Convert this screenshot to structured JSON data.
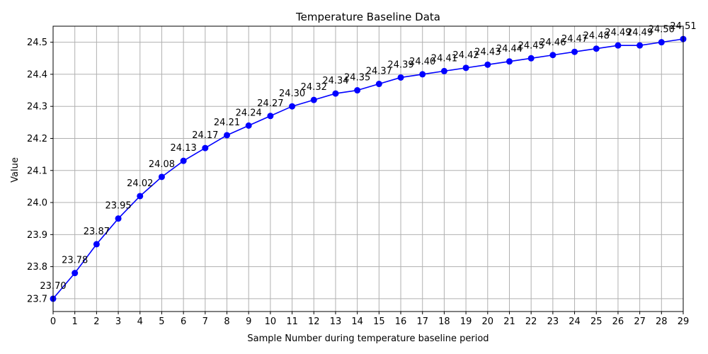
{
  "chart_data": {
    "type": "line",
    "title": "Temperature Baseline Data",
    "xlabel": "Sample Number during temperature baseline period",
    "ylabel": "Value",
    "x": [
      0,
      1,
      2,
      3,
      4,
      5,
      6,
      7,
      8,
      9,
      10,
      11,
      12,
      13,
      14,
      15,
      16,
      17,
      18,
      19,
      20,
      21,
      22,
      23,
      24,
      25,
      26,
      27,
      28,
      29
    ],
    "values": [
      23.7,
      23.78,
      23.87,
      23.95,
      24.02,
      24.08,
      24.13,
      24.17,
      24.21,
      24.24,
      24.27,
      24.3,
      24.32,
      24.34,
      24.35,
      24.37,
      24.39,
      24.4,
      24.41,
      24.42,
      24.43,
      24.44,
      24.45,
      24.46,
      24.47,
      24.48,
      24.49,
      24.49,
      24.5,
      24.51
    ],
    "data_labels": [
      "23.70",
      "23.78",
      "23.87",
      "23.95",
      "24.02",
      "24.08",
      "24.13",
      "24.17",
      "24.21",
      "24.24",
      "24.27",
      "24.30",
      "24.32",
      "24.34",
      "24.35",
      "24.37",
      "24.39",
      "24.40",
      "24.41",
      "24.42",
      "24.43",
      "24.44",
      "24.45",
      "24.46",
      "24.47",
      "24.48",
      "24.49",
      "24.49",
      "24.50",
      "24.51"
    ],
    "xlim": [
      0,
      29
    ],
    "ylim": [
      23.66,
      24.55
    ],
    "xticks": [
      "0",
      "1",
      "2",
      "3",
      "4",
      "5",
      "6",
      "7",
      "8",
      "9",
      "10",
      "11",
      "12",
      "13",
      "14",
      "15",
      "16",
      "17",
      "18",
      "19",
      "20",
      "21",
      "22",
      "23",
      "24",
      "25",
      "26",
      "27",
      "28",
      "29"
    ],
    "yticks": [
      "23.7",
      "23.8",
      "23.9",
      "24.0",
      "24.1",
      "24.2",
      "24.3",
      "24.4",
      "24.5"
    ],
    "ytick_values": [
      23.7,
      23.8,
      23.9,
      24.0,
      24.1,
      24.2,
      24.3,
      24.4,
      24.5
    ],
    "grid": true,
    "line_color": "#0000ff",
    "marker_color": "#0000ff",
    "grid_color": "#b0b0b0"
  }
}
